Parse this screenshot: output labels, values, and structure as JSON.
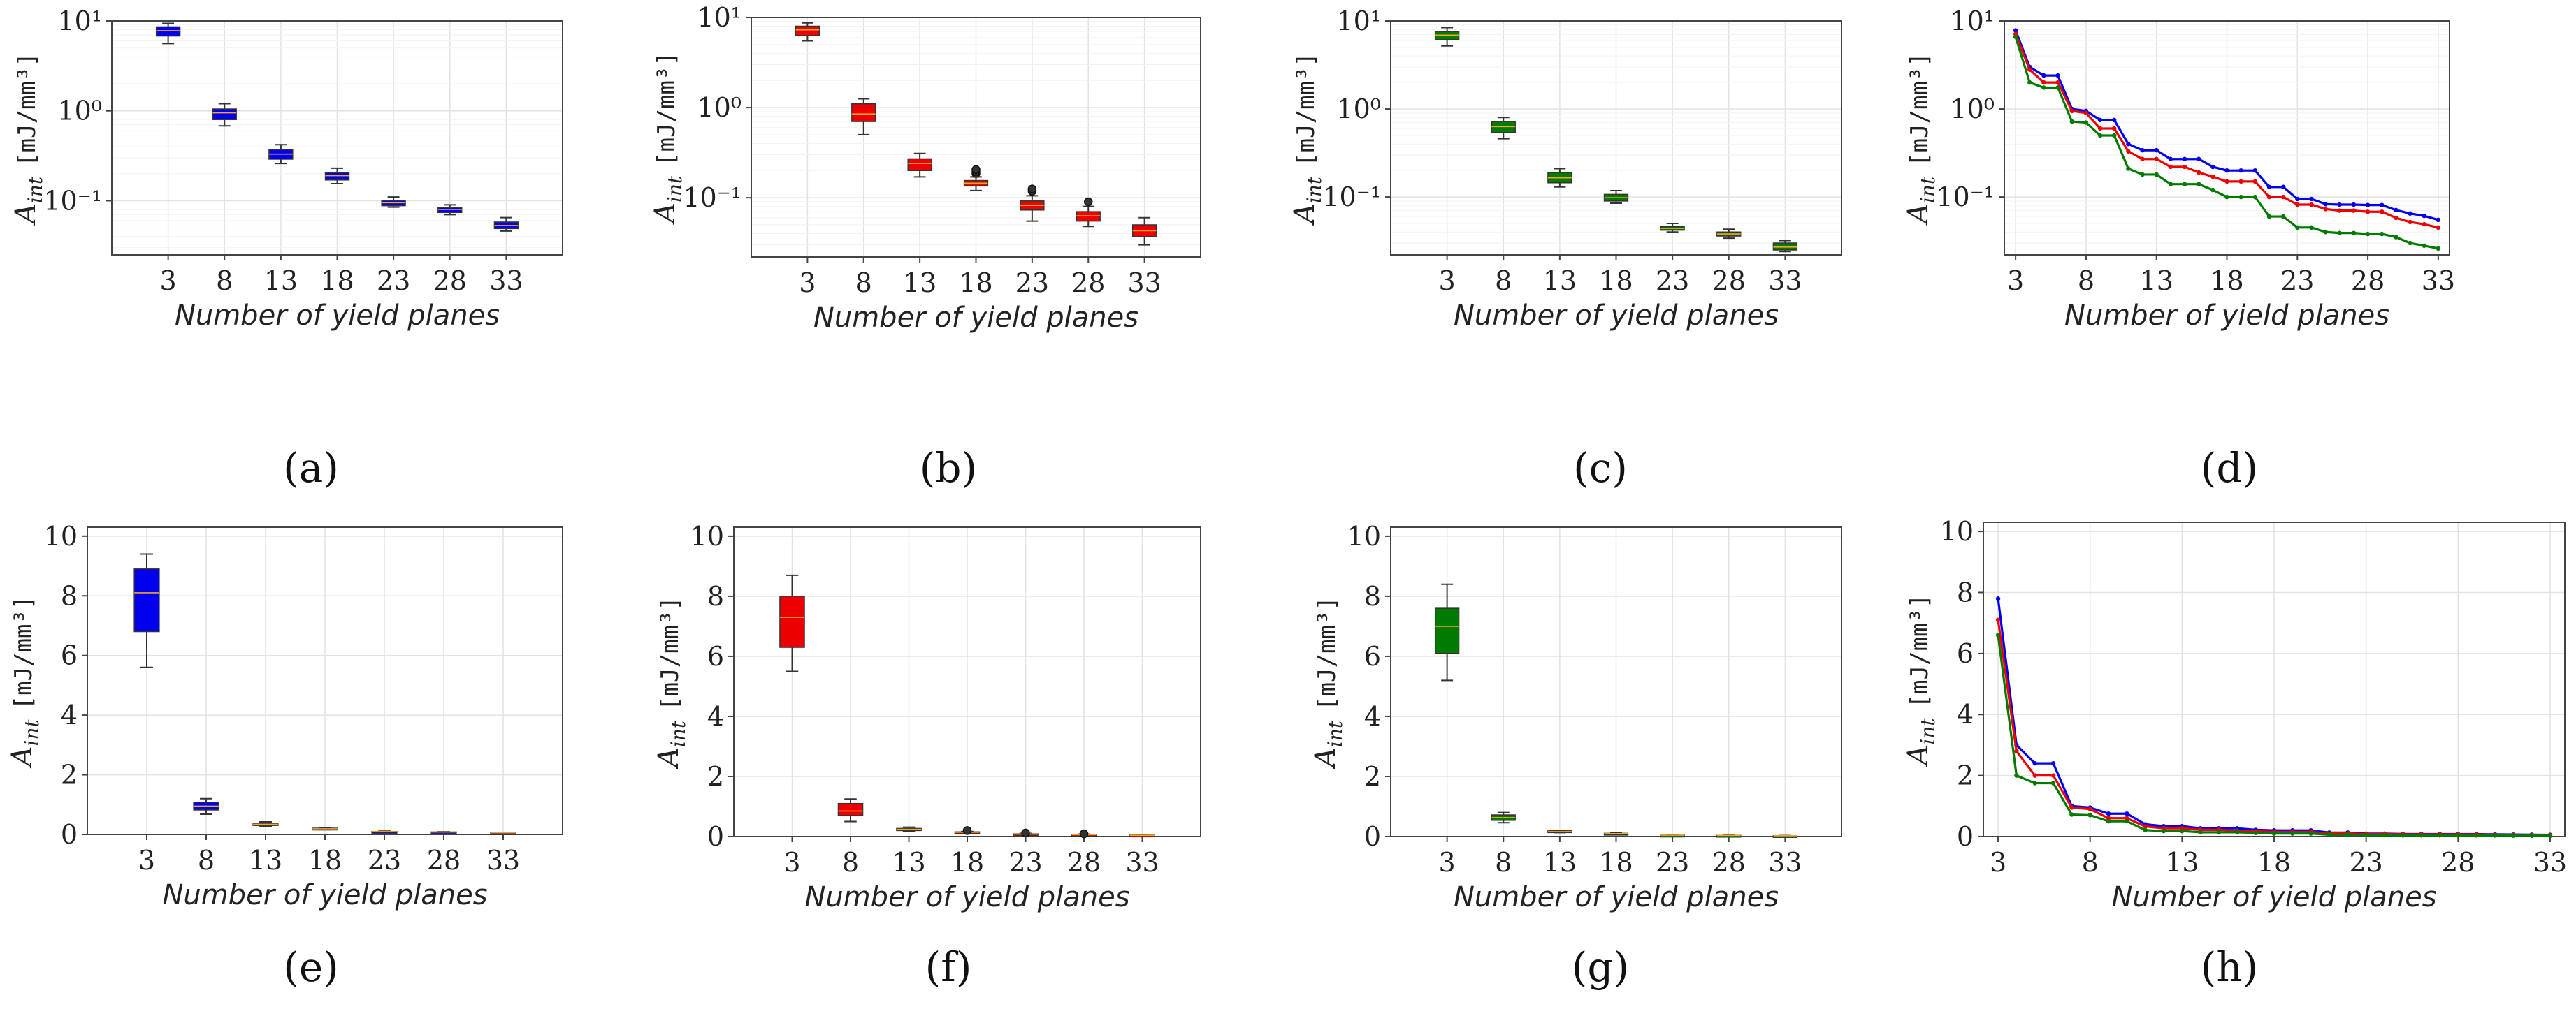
{
  "figure": {
    "xlabel": "Number of yield planes",
    "ylabel_main": "A",
    "ylabel_sub": "int",
    "ylabel_unit": "[mJ/mm³]"
  },
  "colors": {
    "blue": "#0000ee",
    "red": "#ee0000",
    "green": "#007a00"
  },
  "chart_data": [
    {
      "panel": "(a)",
      "type": "box",
      "scale": "log",
      "color": "blue",
      "title": "",
      "xlabel": "Number of yield planes",
      "ylabel": "A_int [mJ/mm³]",
      "ylim": [
        0.025,
        10
      ],
      "categories": [
        "3",
        "8",
        "13",
        "18",
        "23",
        "28",
        "33"
      ],
      "boxes": [
        {
          "x": 3,
          "min": 5.6,
          "q1": 6.8,
          "median": 7.8,
          "q3": 8.6,
          "max": 9.4
        },
        {
          "x": 8,
          "min": 0.68,
          "q1": 0.8,
          "median": 0.95,
          "q3": 1.05,
          "max": 1.2
        },
        {
          "x": 13,
          "min": 0.26,
          "q1": 0.29,
          "median": 0.33,
          "q3": 0.37,
          "max": 0.42
        },
        {
          "x": 18,
          "min": 0.155,
          "q1": 0.17,
          "median": 0.19,
          "q3": 0.205,
          "max": 0.23
        },
        {
          "x": 23,
          "min": 0.085,
          "q1": 0.088,
          "median": 0.095,
          "q3": 0.1,
          "max": 0.11
        },
        {
          "x": 28,
          "min": 0.07,
          "q1": 0.074,
          "median": 0.08,
          "q3": 0.084,
          "max": 0.09
        },
        {
          "x": 33,
          "min": 0.046,
          "q1": 0.049,
          "median": 0.053,
          "q3": 0.058,
          "max": 0.065
        }
      ],
      "yticks": [
        {
          "value": 10,
          "label": "10¹"
        },
        {
          "value": 1,
          "label": "10⁰"
        },
        {
          "value": 0.1,
          "label": "10⁻¹"
        }
      ]
    },
    {
      "panel": "(b)",
      "type": "box",
      "scale": "log",
      "color": "red",
      "title": "",
      "xlabel": "Number of yield planes",
      "ylabel": "A_int [mJ/mm³]",
      "ylim": [
        0.022,
        10
      ],
      "categories": [
        "3",
        "8",
        "13",
        "18",
        "23",
        "28",
        "33"
      ],
      "boxes": [
        {
          "x": 3,
          "min": 5.5,
          "q1": 6.3,
          "median": 7.3,
          "q3": 8.0,
          "max": 8.7,
          "outliers": []
        },
        {
          "x": 8,
          "min": 0.5,
          "q1": 0.7,
          "median": 0.85,
          "q3": 1.1,
          "max": 1.25,
          "outliers": []
        },
        {
          "x": 13,
          "min": 0.17,
          "q1": 0.2,
          "median": 0.24,
          "q3": 0.27,
          "max": 0.31,
          "outliers": []
        },
        {
          "x": 18,
          "min": 0.12,
          "q1": 0.135,
          "median": 0.145,
          "q3": 0.155,
          "max": 0.17,
          "outliers": [
            0.185,
            0.195,
            0.205
          ]
        },
        {
          "x": 23,
          "min": 0.055,
          "q1": 0.073,
          "median": 0.082,
          "q3": 0.092,
          "max": 0.105,
          "outliers": [
            0.118,
            0.125
          ]
        },
        {
          "x": 28,
          "min": 0.048,
          "q1": 0.055,
          "median": 0.063,
          "q3": 0.07,
          "max": 0.08,
          "outliers": [
            0.09
          ]
        },
        {
          "x": 33,
          "min": 0.03,
          "q1": 0.037,
          "median": 0.043,
          "q3": 0.05,
          "max": 0.06,
          "outliers": []
        }
      ],
      "yticks": [
        {
          "value": 10,
          "label": "10¹"
        },
        {
          "value": 1,
          "label": "10⁰"
        },
        {
          "value": 0.1,
          "label": "10⁻¹"
        }
      ]
    },
    {
      "panel": "(c)",
      "type": "box",
      "scale": "log",
      "color": "green",
      "title": "",
      "xlabel": "Number of yield planes",
      "ylabel": "A_int [mJ/mm³]",
      "ylim": [
        0.022,
        10
      ],
      "categories": [
        "3",
        "8",
        "13",
        "18",
        "23",
        "28",
        "33"
      ],
      "boxes": [
        {
          "x": 3,
          "min": 5.2,
          "q1": 6.1,
          "median": 6.9,
          "q3": 7.6,
          "max": 8.4
        },
        {
          "x": 8,
          "min": 0.46,
          "q1": 0.54,
          "median": 0.63,
          "q3": 0.72,
          "max": 0.8
        },
        {
          "x": 13,
          "min": 0.13,
          "q1": 0.145,
          "median": 0.165,
          "q3": 0.19,
          "max": 0.21
        },
        {
          "x": 18,
          "min": 0.085,
          "q1": 0.09,
          "median": 0.098,
          "q3": 0.107,
          "max": 0.118
        },
        {
          "x": 23,
          "min": 0.04,
          "q1": 0.042,
          "median": 0.044,
          "q3": 0.046,
          "max": 0.05
        },
        {
          "x": 28,
          "min": 0.034,
          "q1": 0.036,
          "median": 0.038,
          "q3": 0.04,
          "max": 0.043
        },
        {
          "x": 33,
          "min": 0.024,
          "q1": 0.025,
          "median": 0.027,
          "q3": 0.03,
          "max": 0.032
        }
      ],
      "yticks": [
        {
          "value": 10,
          "label": "10¹"
        },
        {
          "value": 1,
          "label": "10⁰"
        },
        {
          "value": 0.1,
          "label": "10⁻¹"
        }
      ]
    },
    {
      "panel": "(d)",
      "type": "line",
      "scale": "log",
      "title": "",
      "xlabel": "Number of yield planes",
      "ylabel": "A_int [mJ/mm³]",
      "ylim": [
        0.022,
        10
      ],
      "xlim": [
        2.2,
        33.8
      ],
      "x": [
        3,
        4,
        5,
        6,
        7,
        8,
        9,
        10,
        11,
        12,
        13,
        14,
        15,
        16,
        17,
        18,
        19,
        20,
        21,
        22,
        23,
        24,
        25,
        26,
        27,
        28,
        29,
        30,
        31,
        32,
        33
      ],
      "series": [
        {
          "name": "blue",
          "color": "blue",
          "values": [
            7.8,
            3.0,
            2.4,
            2.4,
            1.0,
            0.95,
            0.75,
            0.75,
            0.4,
            0.34,
            0.34,
            0.27,
            0.27,
            0.27,
            0.22,
            0.2,
            0.2,
            0.2,
            0.13,
            0.13,
            0.095,
            0.095,
            0.083,
            0.082,
            0.082,
            0.081,
            0.081,
            0.071,
            0.065,
            0.061,
            0.055
          ]
        },
        {
          "name": "red",
          "color": "red",
          "values": [
            7.1,
            2.8,
            2.0,
            2.0,
            0.95,
            0.9,
            0.6,
            0.6,
            0.33,
            0.27,
            0.27,
            0.22,
            0.22,
            0.19,
            0.17,
            0.15,
            0.15,
            0.15,
            0.1,
            0.1,
            0.082,
            0.082,
            0.073,
            0.07,
            0.07,
            0.068,
            0.068,
            0.058,
            0.052,
            0.049,
            0.045
          ]
        },
        {
          "name": "green",
          "color": "green",
          "values": [
            6.6,
            2.0,
            1.75,
            1.75,
            0.72,
            0.7,
            0.5,
            0.5,
            0.21,
            0.18,
            0.18,
            0.14,
            0.14,
            0.14,
            0.12,
            0.1,
            0.1,
            0.1,
            0.06,
            0.06,
            0.045,
            0.045,
            0.04,
            0.039,
            0.039,
            0.038,
            0.038,
            0.035,
            0.03,
            0.028,
            0.026
          ]
        }
      ],
      "xticks": [
        3,
        8,
        13,
        18,
        23,
        28,
        33
      ],
      "yticks": [
        {
          "value": 10,
          "label": "10¹"
        },
        {
          "value": 1,
          "label": "10⁰"
        },
        {
          "value": 0.1,
          "label": "10⁻¹"
        }
      ]
    },
    {
      "panel": "(e)",
      "type": "box",
      "scale": "linear",
      "color": "blue",
      "title": "",
      "xlabel": "Number of yield planes",
      "ylabel": "A_int [mJ/mm³]",
      "ylim": [
        0,
        10.3
      ],
      "categories": [
        "3",
        "8",
        "13",
        "18",
        "23",
        "28",
        "33"
      ],
      "boxes": [
        {
          "x": 3,
          "min": 5.6,
          "q1": 6.8,
          "median": 8.1,
          "q3": 8.9,
          "max": 9.4
        },
        {
          "x": 8,
          "min": 0.68,
          "q1": 0.82,
          "median": 0.95,
          "q3": 1.08,
          "max": 1.2
        },
        {
          "x": 13,
          "min": 0.26,
          "q1": 0.3,
          "median": 0.34,
          "q3": 0.38,
          "max": 0.42
        },
        {
          "x": 18,
          "min": 0.16,
          "q1": 0.17,
          "median": 0.19,
          "q3": 0.21,
          "max": 0.23
        },
        {
          "x": 23,
          "min": 0.085,
          "q1": 0.09,
          "median": 0.095,
          "q3": 0.1,
          "max": 0.11
        },
        {
          "x": 28,
          "min": 0.07,
          "q1": 0.074,
          "median": 0.08,
          "q3": 0.084,
          "max": 0.09
        },
        {
          "x": 33,
          "min": 0.046,
          "q1": 0.05,
          "median": 0.053,
          "q3": 0.058,
          "max": 0.065
        }
      ],
      "yticks": [
        {
          "value": 0,
          "label": "0"
        },
        {
          "value": 2,
          "label": "2"
        },
        {
          "value": 4,
          "label": "4"
        },
        {
          "value": 6,
          "label": "6"
        },
        {
          "value": 8,
          "label": "8"
        },
        {
          "value": 10,
          "label": "10"
        }
      ]
    },
    {
      "panel": "(f)",
      "type": "box",
      "scale": "linear",
      "color": "red",
      "title": "",
      "xlabel": "Number of yield planes",
      "ylabel": "A_int [mJ/mm³]",
      "ylim": [
        0,
        10.3
      ],
      "categories": [
        "3",
        "8",
        "13",
        "18",
        "23",
        "28",
        "33"
      ],
      "boxes": [
        {
          "x": 3,
          "min": 5.5,
          "q1": 6.3,
          "median": 7.3,
          "q3": 8.0,
          "max": 8.7,
          "outliers": []
        },
        {
          "x": 8,
          "min": 0.5,
          "q1": 0.7,
          "median": 0.85,
          "q3": 1.1,
          "max": 1.25,
          "outliers": []
        },
        {
          "x": 13,
          "min": 0.17,
          "q1": 0.2,
          "median": 0.24,
          "q3": 0.27,
          "max": 0.31,
          "outliers": []
        },
        {
          "x": 18,
          "min": 0.12,
          "q1": 0.135,
          "median": 0.145,
          "q3": 0.155,
          "max": 0.17,
          "outliers": [
            0.2
          ]
        },
        {
          "x": 23,
          "min": 0.055,
          "q1": 0.073,
          "median": 0.082,
          "q3": 0.092,
          "max": 0.105,
          "outliers": [
            0.12
          ]
        },
        {
          "x": 28,
          "min": 0.048,
          "q1": 0.055,
          "median": 0.063,
          "q3": 0.07,
          "max": 0.08,
          "outliers": [
            0.09
          ]
        },
        {
          "x": 33,
          "min": 0.03,
          "q1": 0.037,
          "median": 0.043,
          "q3": 0.05,
          "max": 0.06,
          "outliers": []
        }
      ],
      "yticks": [
        {
          "value": 0,
          "label": "0"
        },
        {
          "value": 2,
          "label": "2"
        },
        {
          "value": 4,
          "label": "4"
        },
        {
          "value": 6,
          "label": "6"
        },
        {
          "value": 8,
          "label": "8"
        },
        {
          "value": 10,
          "label": "10"
        }
      ]
    },
    {
      "panel": "(g)",
      "type": "box",
      "scale": "linear",
      "color": "green",
      "title": "",
      "xlabel": "Number of yield planes",
      "ylabel": "A_int [mJ/mm³]",
      "ylim": [
        0,
        10.3
      ],
      "categories": [
        "3",
        "8",
        "13",
        "18",
        "23",
        "28",
        "33"
      ],
      "boxes": [
        {
          "x": 3,
          "min": 5.2,
          "q1": 6.1,
          "median": 7.0,
          "q3": 7.6,
          "max": 8.4
        },
        {
          "x": 8,
          "min": 0.46,
          "q1": 0.54,
          "median": 0.63,
          "q3": 0.72,
          "max": 0.8
        },
        {
          "x": 13,
          "min": 0.13,
          "q1": 0.145,
          "median": 0.165,
          "q3": 0.19,
          "max": 0.21
        },
        {
          "x": 18,
          "min": 0.085,
          "q1": 0.09,
          "median": 0.098,
          "q3": 0.107,
          "max": 0.118
        },
        {
          "x": 23,
          "min": 0.04,
          "q1": 0.042,
          "median": 0.044,
          "q3": 0.046,
          "max": 0.05
        },
        {
          "x": 28,
          "min": 0.034,
          "q1": 0.036,
          "median": 0.038,
          "q3": 0.04,
          "max": 0.043
        },
        {
          "x": 33,
          "min": 0.024,
          "q1": 0.025,
          "median": 0.027,
          "q3": 0.03,
          "max": 0.032
        }
      ],
      "yticks": [
        {
          "value": 0,
          "label": "0"
        },
        {
          "value": 2,
          "label": "2"
        },
        {
          "value": 4,
          "label": "4"
        },
        {
          "value": 6,
          "label": "6"
        },
        {
          "value": 8,
          "label": "8"
        },
        {
          "value": 10,
          "label": "10"
        }
      ]
    },
    {
      "panel": "(h)",
      "type": "line",
      "scale": "linear",
      "title": "",
      "xlabel": "Number of yield planes",
      "ylabel": "A_int [mJ/mm³]",
      "ylim": [
        0,
        10.3
      ],
      "xlim": [
        2.2,
        33.8
      ],
      "x": [
        3,
        4,
        5,
        6,
        7,
        8,
        9,
        10,
        11,
        12,
        13,
        14,
        15,
        16,
        17,
        18,
        19,
        20,
        21,
        22,
        23,
        24,
        25,
        26,
        27,
        28,
        29,
        30,
        31,
        32,
        33
      ],
      "series": [
        {
          "name": "blue",
          "color": "blue",
          "values": [
            7.8,
            3.0,
            2.4,
            2.4,
            1.0,
            0.95,
            0.75,
            0.75,
            0.4,
            0.34,
            0.34,
            0.27,
            0.27,
            0.27,
            0.22,
            0.2,
            0.2,
            0.2,
            0.13,
            0.13,
            0.095,
            0.095,
            0.083,
            0.082,
            0.082,
            0.081,
            0.081,
            0.071,
            0.065,
            0.061,
            0.055
          ]
        },
        {
          "name": "red",
          "color": "red",
          "values": [
            7.1,
            2.8,
            2.0,
            2.0,
            0.95,
            0.9,
            0.6,
            0.6,
            0.33,
            0.27,
            0.27,
            0.22,
            0.22,
            0.19,
            0.17,
            0.15,
            0.15,
            0.15,
            0.1,
            0.1,
            0.082,
            0.082,
            0.073,
            0.07,
            0.07,
            0.068,
            0.068,
            0.058,
            0.052,
            0.049,
            0.045
          ]
        },
        {
          "name": "green",
          "color": "green",
          "values": [
            6.6,
            2.0,
            1.75,
            1.75,
            0.72,
            0.7,
            0.5,
            0.5,
            0.21,
            0.18,
            0.18,
            0.14,
            0.14,
            0.14,
            0.12,
            0.1,
            0.1,
            0.1,
            0.06,
            0.06,
            0.045,
            0.045,
            0.04,
            0.039,
            0.039,
            0.038,
            0.038,
            0.035,
            0.03,
            0.028,
            0.026
          ]
        }
      ],
      "xticks": [
        3,
        8,
        13,
        18,
        23,
        28,
        33
      ],
      "yticks": [
        {
          "value": 0,
          "label": "0"
        },
        {
          "value": 2,
          "label": "2"
        },
        {
          "value": 4,
          "label": "4"
        },
        {
          "value": 6,
          "label": "6"
        },
        {
          "value": 8,
          "label": "8"
        },
        {
          "value": 10,
          "label": "10"
        }
      ]
    }
  ]
}
